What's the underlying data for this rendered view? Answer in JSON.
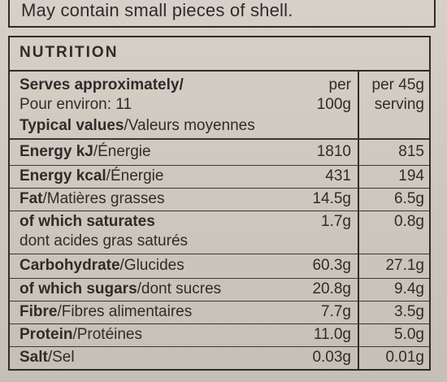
{
  "warning": "May contain small pieces of shell.",
  "nutrition": {
    "title": "NUTRITION",
    "serves_bold": "Serves approximately/",
    "serves_sub": "Pour environ: 11",
    "col_per100_line1": "per",
    "col_per100_line2": "100g",
    "col_per45_line1": "per 45g",
    "col_per45_line2": "serving",
    "typical_bold": "Typical values",
    "typical_rest": "/Valeurs moyennes",
    "rows": [
      {
        "bold": "Energy kJ",
        "rest": "/Énergie",
        "v100": "1810",
        "v45": "815"
      },
      {
        "bold": "Energy kcal",
        "rest": "/Énergie",
        "v100": "431",
        "v45": "194"
      },
      {
        "bold": "Fat",
        "rest": "/Matières grasses",
        "v100": "14.5g",
        "v45": "6.5g"
      },
      {
        "bold": "of which saturates",
        "rest": "",
        "sub": "dont acides gras saturés",
        "v100": "1.7g",
        "v45": "0.8g"
      },
      {
        "bold": "Carbohydrate",
        "rest": "/Glucides",
        "v100": "60.3g",
        "v45": "27.1g"
      },
      {
        "bold": "of which sugars",
        "rest": "/dont sucres",
        "v100": "20.8g",
        "v45": "9.4g"
      },
      {
        "bold": "Fibre",
        "rest": "/Fibres alimentaires",
        "v100": "7.7g",
        "v45": "3.5g"
      },
      {
        "bold": "Protein",
        "rest": "/Protéines",
        "v100": "11.0g",
        "v45": "5.0g"
      },
      {
        "bold": "Salt",
        "rest": "/Sel",
        "v100": "0.03g",
        "v45": "0.01g"
      }
    ]
  }
}
